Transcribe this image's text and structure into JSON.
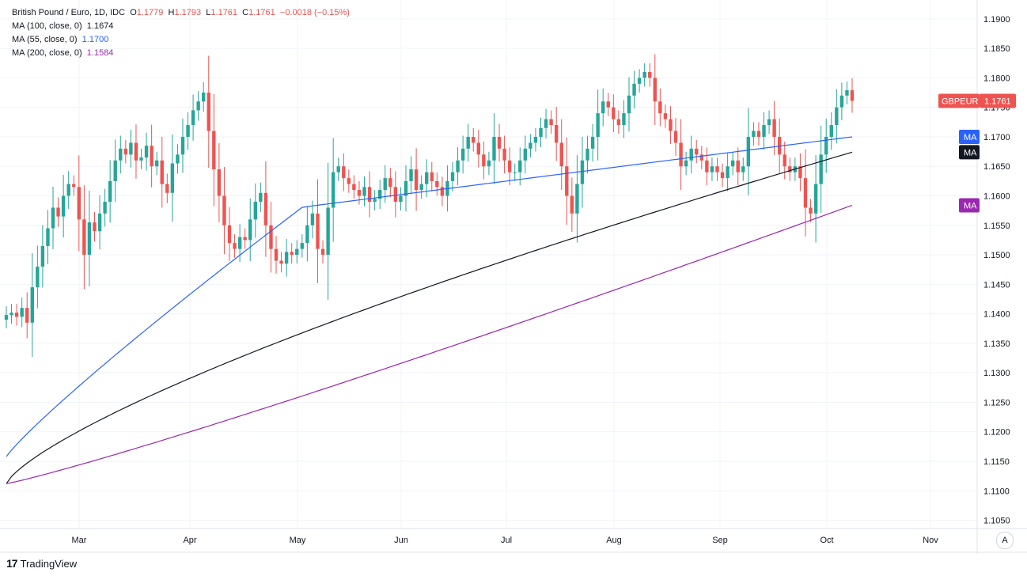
{
  "legend": {
    "title": "British Pound / Euro, 1D, IDC",
    "open_label": "O",
    "open": "1.1779",
    "high_label": "H",
    "high": "1.1793",
    "low_label": "L",
    "low": "1.1761",
    "close_label": "C",
    "close": "1.1761",
    "change": "−0.0018 (−0.15%)",
    "ma100_label": "MA (100, close, 0)",
    "ma100_value": "1.1674",
    "ma55_label": "MA (55, close, 0)",
    "ma55_value": "1.1700",
    "ma200_label": "MA (200, close, 0)",
    "ma200_value": "1.1584"
  },
  "badges": {
    "symbol": "GBPEUR",
    "price": "1.1761",
    "ma": "MA"
  },
  "footer": {
    "logo": "17",
    "brand": "TradingView"
  },
  "auto_button": "A",
  "colors": {
    "up": "#26a69a",
    "down": "#ef5350",
    "ma55": "#2962ff",
    "ma100": "#131722",
    "ma200": "#9c27b0",
    "grid": "#f0f3fa"
  },
  "chart_data": {
    "type": "candlestick",
    "symbol": "GBPEUR",
    "x_ticks": [
      "Mar",
      "Apr",
      "May",
      "Jun",
      "Jul",
      "Aug",
      "Sep",
      "Oct",
      "Nov"
    ],
    "y_ticks": [
      "1.1900",
      "1.1850",
      "1.1800",
      "1.1750",
      "1.1700",
      "1.1650",
      "1.1600",
      "1.1550",
      "1.1500",
      "1.1450",
      "1.1400",
      "1.1350",
      "1.1300",
      "1.1250",
      "1.1200",
      "1.1150",
      "1.1100",
      "1.1050"
    ],
    "ylim": [
      1.1036,
      1.1932
    ],
    "grid": true,
    "closes": [
      1.1398,
      1.1402,
      1.1395,
      1.141,
      1.1385,
      1.1445,
      1.148,
      1.1515,
      1.1545,
      1.158,
      1.1565,
      1.16,
      1.162,
      1.1615,
      1.156,
      1.15,
      1.1555,
      1.154,
      1.157,
      1.159,
      1.1625,
      1.166,
      1.168,
      1.167,
      1.169,
      1.166,
      1.1665,
      1.1685,
      1.165,
      1.166,
      1.162,
      1.1605,
      1.1655,
      1.167,
      1.17,
      1.172,
      1.1745,
      1.176,
      1.1775,
      1.171,
      1.1645,
      1.16,
      1.155,
      1.152,
      1.151,
      1.153,
      1.1525,
      1.156,
      1.159,
      1.1605,
      1.155,
      1.151,
      1.149,
      1.1485,
      1.1505,
      1.15,
      1.151,
      1.152,
      1.155,
      1.157,
      1.151,
      1.15,
      1.158,
      1.164,
      1.165,
      1.163,
      1.162,
      1.161,
      1.16,
      1.1615,
      1.159,
      1.1595,
      1.161,
      1.163,
      1.1615,
      1.159,
      1.16,
      1.1625,
      1.1645,
      1.161,
      1.162,
      1.164,
      1.1625,
      1.1615,
      1.16,
      1.1625,
      1.164,
      1.166,
      1.168,
      1.17,
      1.169,
      1.167,
      1.165,
      1.166,
      1.17,
      1.168,
      1.166,
      1.164,
      1.164,
      1.166,
      1.168,
      1.169,
      1.17,
      1.1715,
      1.173,
      1.172,
      1.169,
      1.165,
      1.16,
      1.157,
      1.162,
      1.166,
      1.168,
      1.17,
      1.174,
      1.176,
      1.175,
      1.173,
      1.172,
      1.174,
      1.177,
      1.179,
      1.18,
      1.181,
      1.18,
      1.176,
      1.174,
      1.173,
      1.171,
      1.169,
      1.165,
      1.166,
      1.168,
      1.167,
      1.166,
      1.164,
      1.165,
      1.164,
      1.163,
      1.165,
      1.166,
      1.164,
      1.165,
      1.17,
      1.171,
      1.17,
      1.172,
      1.173,
      1.17,
      1.167,
      1.165,
      1.164,
      1.165,
      1.163,
      1.158,
      1.157,
      1.162,
      1.167,
      1.17,
      1.172,
      1.175,
      1.177,
      1.1779,
      1.1761
    ],
    "ma55_last": 1.17,
    "ma100_last": 1.1674,
    "ma200_last": 1.1584
  }
}
